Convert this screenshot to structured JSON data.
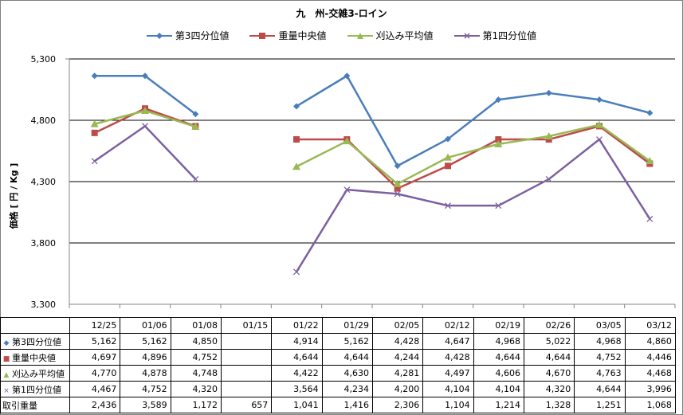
{
  "chart_data": {
    "type": "line",
    "title": "九　州-交雑3-ロイン",
    "ylabel": "価格 [ 円 / Kg ]",
    "ylim": [
      3300,
      5300
    ],
    "yticks": [
      "3,300",
      "3,800",
      "4,300",
      "4,800",
      "5,300"
    ],
    "ytick_values": [
      3300,
      3800,
      4300,
      4800,
      5300
    ],
    "grid": true,
    "legend_position": "top",
    "categories": [
      "12/25",
      "01/06",
      "01/08",
      "01/15",
      "01/22",
      "01/29",
      "02/05",
      "02/12",
      "02/19",
      "02/26",
      "03/05",
      "03/12"
    ],
    "series": [
      {
        "name": "第3四分位値",
        "color": "#4a7ebb",
        "marker": "diamond",
        "values": [
          5162,
          5162,
          4850,
          null,
          4914,
          5162,
          4428,
          4647,
          4968,
          5022,
          4968,
          4860
        ],
        "labels": [
          "5,162",
          "5,162",
          "4,850",
          "",
          "4,914",
          "5,162",
          "4,428",
          "4,647",
          "4,968",
          "5,022",
          "4,968",
          "4,860"
        ]
      },
      {
        "name": "重量中央値",
        "color": "#be4b48",
        "marker": "square",
        "values": [
          4697,
          4896,
          4752,
          null,
          4644,
          4644,
          4244,
          4428,
          4644,
          4644,
          4752,
          4446
        ],
        "labels": [
          "4,697",
          "4,896",
          "4,752",
          "",
          "4,644",
          "4,644",
          "4,244",
          "4,428",
          "4,644",
          "4,644",
          "4,752",
          "4,446"
        ]
      },
      {
        "name": "刈込み平均値",
        "color": "#98b954",
        "marker": "triangle",
        "values": [
          4770,
          4878,
          4748,
          null,
          4422,
          4630,
          4281,
          4497,
          4606,
          4670,
          4763,
          4468
        ],
        "labels": [
          "4,770",
          "4,878",
          "4,748",
          "",
          "4,422",
          "4,630",
          "4,281",
          "4,497",
          "4,606",
          "4,670",
          "4,763",
          "4,468"
        ]
      },
      {
        "name": "第1四分位値",
        "color": "#7d60a0",
        "marker": "x",
        "values": [
          4467,
          4752,
          4320,
          null,
          3564,
          4234,
          4200,
          4104,
          4104,
          4320,
          4644,
          3996
        ],
        "labels": [
          "4,467",
          "4,752",
          "4,320",
          "",
          "3,564",
          "4,234",
          "4,200",
          "4,104",
          "4,104",
          "4,320",
          "4,644",
          "3,996"
        ]
      }
    ],
    "extra_rows": [
      {
        "name": "取引重量",
        "labels": [
          "2,436",
          "3,589",
          "1,172",
          "657",
          "1,041",
          "1,416",
          "2,306",
          "1,104",
          "1,214",
          "1,328",
          "1,251",
          "1,068"
        ]
      }
    ]
  }
}
